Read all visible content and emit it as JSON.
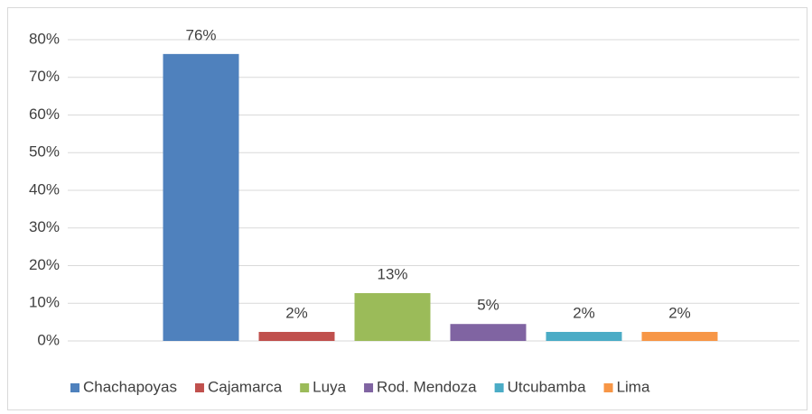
{
  "chart_data": {
    "type": "bar",
    "series": [
      {
        "name": "Chachapoyas",
        "color": "#4f81bd",
        "values": [
          76.2
        ],
        "value_labels": [
          "76%"
        ]
      },
      {
        "name": "Cajamarca",
        "color": "#c0504d",
        "values": [
          2.4
        ],
        "value_labels": [
          "2%"
        ]
      },
      {
        "name": "Luya",
        "color": "#9bbb59",
        "values": [
          12.7
        ],
        "value_labels": [
          "13%"
        ]
      },
      {
        "name": "Rod. Mendoza",
        "color": "#8064a2",
        "values": [
          4.5
        ],
        "value_labels": [
          "5%"
        ]
      },
      {
        "name": "Utcubamba",
        "color": "#4bacc6",
        "values": [
          2.4
        ],
        "value_labels": [
          "2%"
        ]
      },
      {
        "name": "Lima",
        "color": "#f79646",
        "values": [
          2.4
        ],
        "value_labels": [
          "2%"
        ]
      }
    ],
    "ylim": [
      0,
      80
    ],
    "yticks": [
      {
        "value": 0,
        "label": "0%"
      },
      {
        "value": 10,
        "label": "10%"
      },
      {
        "value": 20,
        "label": "20%"
      },
      {
        "value": 30,
        "label": "30%"
      },
      {
        "value": 40,
        "label": "40%"
      },
      {
        "value": 50,
        "label": "50%"
      },
      {
        "value": 60,
        "label": "60%"
      },
      {
        "value": 70,
        "label": "70%"
      },
      {
        "value": 80,
        "label": "80%"
      }
    ],
    "grid": true,
    "legend": "bottom"
  }
}
